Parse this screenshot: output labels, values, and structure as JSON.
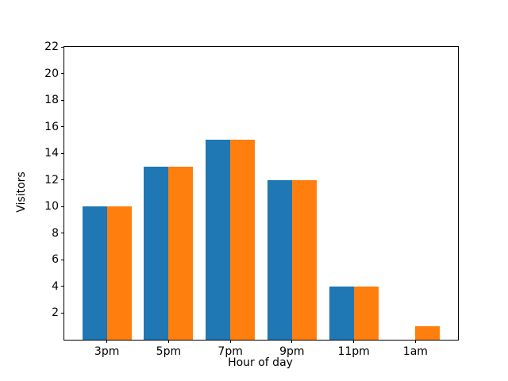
{
  "chart_data": {
    "type": "bar",
    "title": "",
    "xlabel": "Hour of day",
    "ylabel": "Visitors",
    "categories": [
      "3pm",
      "5pm",
      "7pm",
      "9pm",
      "11pm",
      "1am"
    ],
    "series": [
      {
        "name": "blue",
        "color": "#1f77b4",
        "values": [
          10,
          13,
          15,
          12,
          4,
          0
        ]
      },
      {
        "name": "orange",
        "color": "#ff7f0e",
        "values": [
          10,
          13,
          15,
          12,
          4,
          1
        ]
      }
    ],
    "ylim": [
      0,
      22
    ],
    "yticks": [
      2,
      4,
      6,
      8,
      10,
      12,
      14,
      16,
      18,
      20,
      22
    ],
    "xlim": [
      -0.69,
      5.69
    ],
    "bar_width": 0.4,
    "grid": false,
    "legend": "none",
    "frame_color": "#000000",
    "background_color": "#ffffff"
  }
}
